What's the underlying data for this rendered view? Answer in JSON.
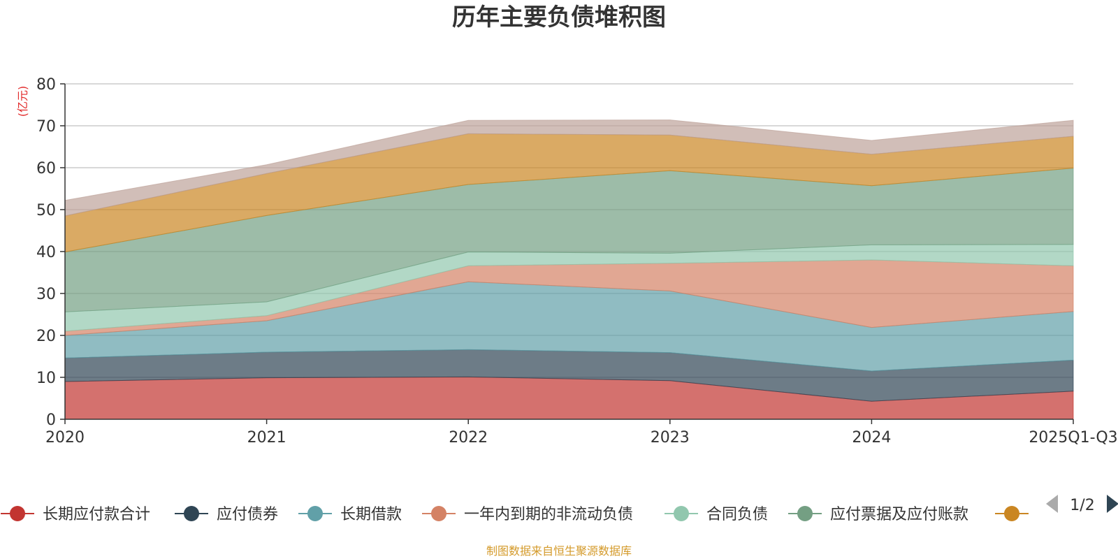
{
  "chart_data": {
    "type": "area",
    "stacked": true,
    "title": "历年主要负债堆积图",
    "unit_label": "(亿元)",
    "categories": [
      "2020",
      "2021",
      "2022",
      "2023",
      "2024",
      "2025Q1-Q3"
    ],
    "ylim": [
      0,
      80
    ],
    "yticks": [
      0,
      10,
      20,
      30,
      40,
      50,
      60,
      70,
      80
    ],
    "grid": true,
    "series": [
      {
        "name": "长期应付款合计",
        "color": "#c23531",
        "values": [
          9.0,
          9.9,
          10.1,
          9.2,
          4.3,
          6.7
        ]
      },
      {
        "name": "应付债券",
        "color": "#2f4554",
        "values": [
          5.6,
          6.1,
          6.5,
          6.7,
          7.2,
          7.4
        ]
      },
      {
        "name": "长期借款",
        "color": "#61a0a8",
        "values": [
          5.4,
          7.5,
          16.2,
          14.7,
          10.4,
          11.6
        ]
      },
      {
        "name": "一年内到期的非流动负债",
        "color": "#d48265",
        "values": [
          1.0,
          1.2,
          3.8,
          6.6,
          16.1,
          10.9
        ]
      },
      {
        "name": "合同负债",
        "color": "#91c7ae",
        "values": [
          4.6,
          3.3,
          3.3,
          2.4,
          3.6,
          5.1
        ]
      },
      {
        "name": "应付票据及应付账款",
        "color": "#749f83",
        "values": [
          14.3,
          20.6,
          16.1,
          19.7,
          14.1,
          18.2
        ]
      },
      {
        "name": "",
        "color": "#ca8622",
        "values": [
          8.6,
          10.0,
          12.1,
          8.5,
          7.5,
          7.6
        ]
      },
      {
        "name": "",
        "color": "#bda29a",
        "values": [
          3.7,
          2.1,
          3.2,
          3.6,
          3.3,
          3.8
        ]
      }
    ],
    "legend": {
      "position": "bottom",
      "page": "1/2",
      "visible_items": 7
    },
    "source": "制图数据来自恒生聚源数据库"
  }
}
